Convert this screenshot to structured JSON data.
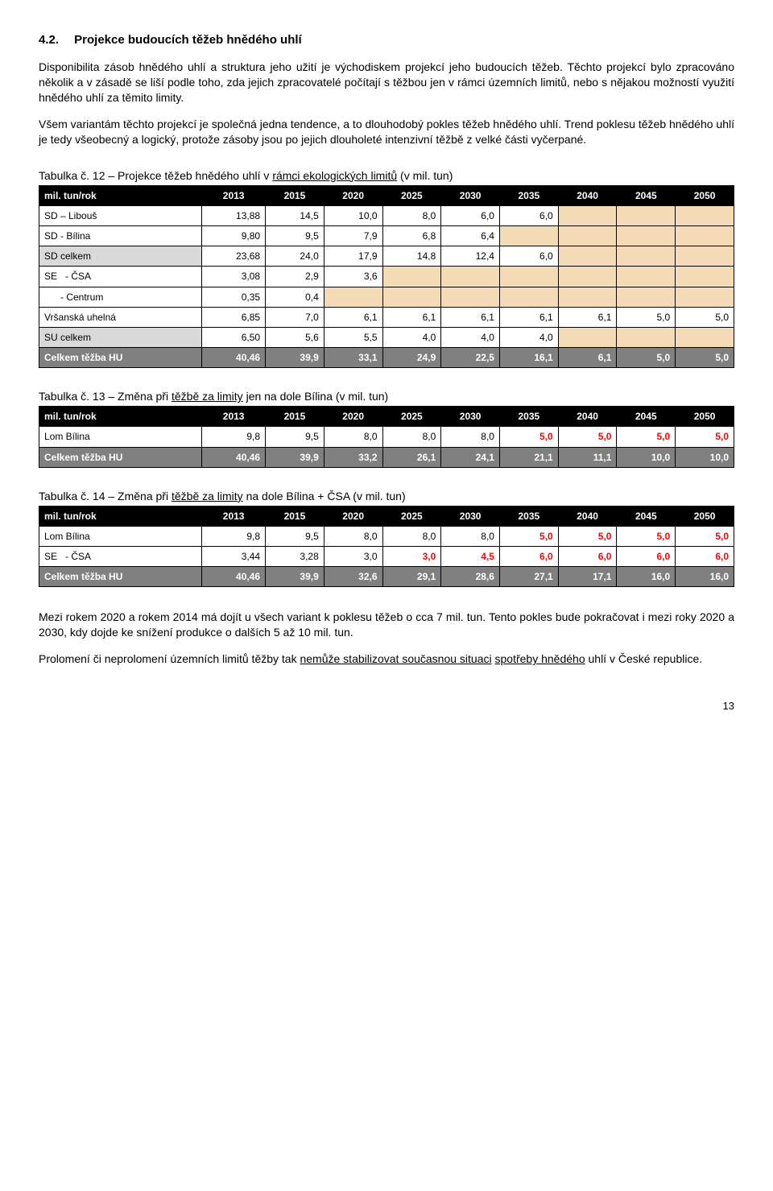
{
  "heading": {
    "num": "4.2.",
    "text": "Projekce budoucích těžeb hnědého uhlí"
  },
  "para1": "Disponibilita zásob hnědého uhlí a struktura jeho užití je východiskem projekcí jeho budoucích těžeb. Těchto projekcí bylo zpracováno několik a v zásadě se liší podle toho, zda jejich zpracovatelé počítají s těžbou jen v rámci územních limitů, nebo s nějakou možností využití hnědého uhlí za těmito limity.",
  "para2": "Všem variantám těchto projekcí je společná jedna tendence, a to dlouhodobý pokles těžeb hnědého uhlí. Trend poklesu těžeb hnědého uhlí je tedy všeobecný a logický, protože zásoby jsou po jejich dlouholeté intenzivní těžbě z velké části vyčerpané.",
  "years": [
    "2013",
    "2015",
    "2020",
    "2025",
    "2030",
    "2035",
    "2040",
    "2045",
    "2050"
  ],
  "colLabel": "mil. tun/rok",
  "table12": {
    "caption_pre": "Tabulka č. 12 – Projekce těžeb hnědého uhlí v ",
    "caption_u": "rámci ekologických limitů",
    "caption_post": " (v mil. tun)",
    "rows": [
      {
        "label": "SD – Libouš",
        "cells": [
          "13,88",
          "14,5",
          "10,0",
          "8,0",
          "6,0",
          "6,0",
          "",
          "",
          ""
        ],
        "tanFrom": 6
      },
      {
        "label": "SD - Bílina",
        "cells": [
          "9,80",
          "9,5",
          "7,9",
          "6,8",
          "6,4",
          "",
          "",
          "",
          ""
        ],
        "tanFrom": 5
      },
      {
        "label": "SD celkem",
        "cells": [
          "23,68",
          "24,0",
          "17,9",
          "14,8",
          "12,4",
          "6,0",
          "",
          "",
          ""
        ],
        "grayFirst": true,
        "tanFrom": 6
      },
      {
        "label": "SE   - ČSA",
        "cells": [
          "3,08",
          "2,9",
          "3,6",
          "",
          "",
          "",
          "",
          "",
          ""
        ],
        "tanFrom": 3
      },
      {
        "label": "      - Centrum",
        "cells": [
          "0,35",
          "0,4",
          "",
          "",
          "",
          "",
          "",
          "",
          ""
        ],
        "tanFrom": 2
      },
      {
        "label": "Vršanská uhelná",
        "cells": [
          "6,85",
          "7,0",
          "6,1",
          "6,1",
          "6,1",
          "6,1",
          "6,1",
          "5,0",
          "5,0"
        ]
      },
      {
        "label": "SU celkem",
        "cells": [
          "6,50",
          "5,6",
          "5,5",
          "4,0",
          "4,0",
          "4,0",
          "",
          "",
          ""
        ],
        "grayFirst": true,
        "tanFrom": 6
      }
    ],
    "total": {
      "label": "Celkem těžba HU",
      "cells": [
        "40,46",
        "39,9",
        "33,1",
        "24,9",
        "22,5",
        "16,1",
        "6,1",
        "5,0",
        "5,0"
      ]
    }
  },
  "table13": {
    "caption_pre": "Tabulka č. 13 – Změna při ",
    "caption_u": "těžbě za limity",
    "caption_post": " jen na dole Bílina (v mil. tun)",
    "rows": [
      {
        "label": "Lom Bílina",
        "cells": [
          "9,8",
          "9,5",
          "8,0",
          "8,0",
          "8,0",
          "5,0",
          "5,0",
          "5,0",
          "5,0"
        ],
        "redFrom": 5
      }
    ],
    "total": {
      "label": "Celkem těžba HU",
      "cells": [
        "40,46",
        "39,9",
        "33,2",
        "26,1",
        "24,1",
        "21,1",
        "11,1",
        "10,0",
        "10,0"
      ]
    }
  },
  "table14": {
    "caption_pre": "Tabulka č. 14 – Změna při ",
    "caption_u": "těžbě za limity",
    "caption_post": " na dole Bílina + ČSA (v mil. tun)",
    "rows": [
      {
        "label": "Lom Bílina",
        "cells": [
          "9,8",
          "9,5",
          "8,0",
          "8,0",
          "8,0",
          "5,0",
          "5,0",
          "5,0",
          "5,0"
        ],
        "redFrom": 5
      },
      {
        "label": "SE   - ČSA",
        "cells": [
          "3,44",
          "3,28",
          "3,0",
          "3,0",
          "4,5",
          "6,0",
          "6,0",
          "6,0",
          "6,0"
        ],
        "redFrom": 3
      }
    ],
    "total": {
      "label": "Celkem těžba HU",
      "cells": [
        "40,46",
        "39,9",
        "32,6",
        "29,1",
        "28,6",
        "27,1",
        "17,1",
        "16,0",
        "16,0"
      ]
    }
  },
  "para3": "Mezi rokem 2020 a rokem 2014 má dojít u všech variant k poklesu těžeb o cca 7 mil. tun. Tento pokles bude pokračovat i mezi roky 2020 a 2030, kdy dojde ke snížení produkce o dalších 5 až 10 mil. tun.",
  "para4_pre": "Prolomení či neprolomení územních limitů těžby tak ",
  "para4_u1": "nemůže stabilizovat současnou situaci",
  "para4_mid": " ",
  "para4_u2": "spotřeby hnědého",
  "para4_post": " uhlí v České republice.",
  "pageNum": "13"
}
